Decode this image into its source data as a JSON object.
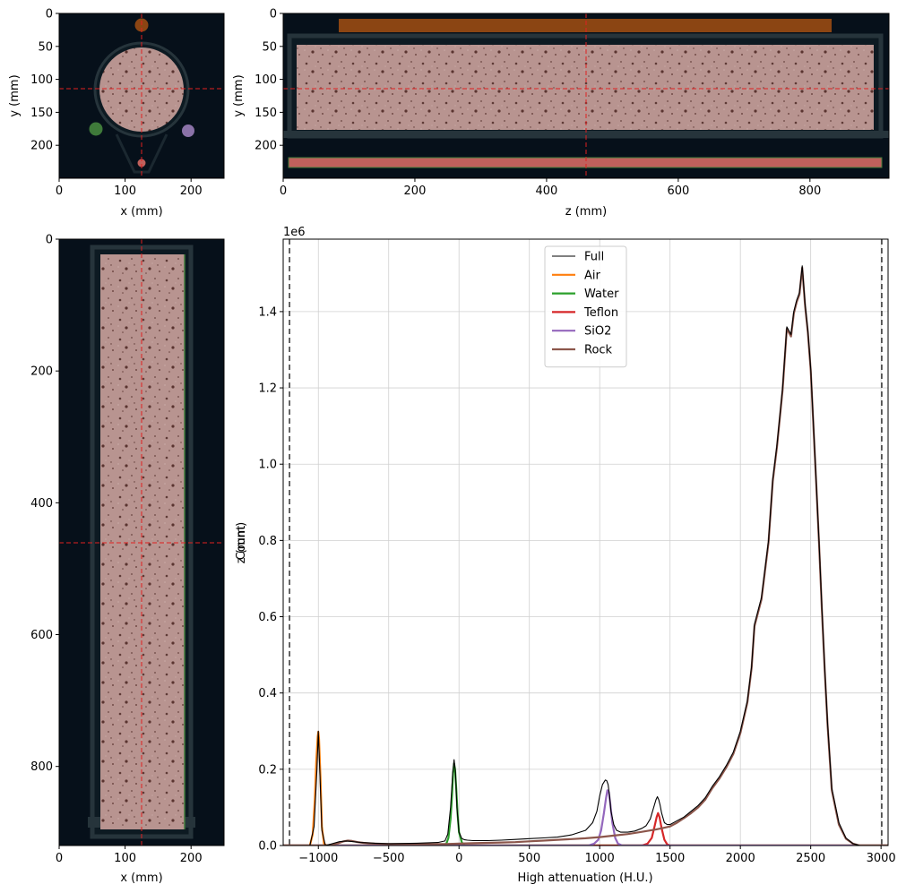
{
  "colors": {
    "full": "#000000",
    "air": "#ff7f0e",
    "water": "#2ca02c",
    "teflon": "#d62728",
    "sio2": "#9467bd",
    "rock": "#8c564b",
    "crosshair": "#e02020",
    "background": "#06101a",
    "frame": "#26343b",
    "rock_overlay": "#b89490",
    "steel": "#8b4513"
  },
  "panels": {
    "axial": {
      "xlabel": "x (mm)",
      "ylabel": "y (mm)",
      "xlim": [
        0,
        250
      ],
      "ylim": [
        250,
        0
      ],
      "xticks": [
        "0",
        "100",
        "200"
      ],
      "xtick_values": [
        0,
        100,
        200
      ],
      "yticks": [
        "0",
        "50",
        "100",
        "150",
        "200"
      ],
      "ytick_values": [
        0,
        50,
        100,
        150,
        200
      ],
      "crosshair": {
        "x": 125,
        "y": 115
      }
    },
    "coronal": {
      "xlabel": "z (mm)",
      "ylabel": "y (mm)",
      "xlim": [
        0,
        920
      ],
      "ylim": [
        250,
        0
      ],
      "xticks": [
        "0",
        "200",
        "400",
        "600",
        "800"
      ],
      "xtick_values": [
        0,
        200,
        400,
        600,
        800
      ],
      "yticks": [
        "0",
        "50",
        "100",
        "150",
        "200"
      ],
      "ytick_values": [
        0,
        50,
        100,
        150,
        200
      ],
      "crosshair": {
        "x": 460,
        "y": 115
      }
    },
    "sagittal": {
      "xlabel": "x (mm)",
      "ylabel": "z (mm)",
      "xlim": [
        0,
        250
      ],
      "ylim": [
        920,
        0
      ],
      "xticks": [
        "0",
        "100",
        "200"
      ],
      "xtick_values": [
        0,
        100,
        200
      ],
      "yticks": [
        "0",
        "200",
        "400",
        "600",
        "800"
      ],
      "ytick_values": [
        0,
        200,
        400,
        600,
        800
      ],
      "crosshair": {
        "x": 125,
        "y": 460
      }
    }
  },
  "chart_data": {
    "type": "line",
    "xlabel": "High attenuation (H.U.)",
    "ylabel": "Count",
    "offset_label": "1e6",
    "xlim": [
      -1250,
      3050
    ],
    "ylim": [
      0,
      1.59
    ],
    "xticks": [
      "−1000",
      "−500",
      "0",
      "500",
      "1000",
      "1500",
      "2000",
      "2500",
      "3000"
    ],
    "xtick_values": [
      -1000,
      -500,
      0,
      500,
      1000,
      1500,
      2000,
      2500,
      3000
    ],
    "yticks": [
      "0.0",
      "0.2",
      "0.4",
      "0.6",
      "0.8",
      "1.0",
      "1.2",
      "1.4"
    ],
    "ytick_values": [
      0,
      0.2,
      0.4,
      0.6,
      0.8,
      1.0,
      1.2,
      1.4
    ],
    "grid": true,
    "legend_position": "top-center",
    "vlines": [
      -1205,
      3005
    ],
    "series": [
      {
        "name": "Full",
        "color_key": "full",
        "width": 1.1,
        "x": [
          -1250,
          -1060,
          -1030,
          -1010,
          -1000,
          -990,
          -975,
          -950,
          -900,
          -850,
          -800,
          -750,
          -700,
          -600,
          -500,
          -300,
          -150,
          -100,
          -80,
          -60,
          -45,
          -35,
          -25,
          -15,
          0,
          20,
          40,
          60,
          100,
          150,
          200,
          300,
          400,
          500,
          600,
          700,
          800,
          900,
          950,
          980,
          1000,
          1020,
          1040,
          1050,
          1060,
          1070,
          1080,
          1100,
          1120,
          1150,
          1200,
          1250,
          1300,
          1330,
          1360,
          1380,
          1400,
          1410,
          1420,
          1430,
          1440,
          1460,
          1480,
          1500,
          1550,
          1600,
          1650,
          1700,
          1750,
          1800,
          1850,
          1900,
          1950,
          2000,
          2050,
          2080,
          2100,
          2150,
          2200,
          2230,
          2260,
          2300,
          2330,
          2360,
          2380,
          2400,
          2420,
          2440,
          2460,
          2480,
          2500,
          2520,
          2540,
          2560,
          2580,
          2600,
          2620,
          2650,
          2700,
          2750,
          2800,
          2850,
          2900,
          2950,
          3000,
          3050
        ],
        "y": [
          0,
          0,
          0.05,
          0.2,
          0.3,
          0.2,
          0.04,
          0,
          0.005,
          0.01,
          0.012,
          0.01,
          0.008,
          0.006,
          0.005,
          0.006,
          0.008,
          0.012,
          0.03,
          0.1,
          0.19,
          0.225,
          0.19,
          0.1,
          0.035,
          0.018,
          0.015,
          0.014,
          0.013,
          0.013,
          0.013,
          0.014,
          0.016,
          0.018,
          0.02,
          0.022,
          0.028,
          0.04,
          0.06,
          0.09,
          0.13,
          0.16,
          0.172,
          0.17,
          0.16,
          0.13,
          0.09,
          0.055,
          0.04,
          0.035,
          0.035,
          0.038,
          0.045,
          0.052,
          0.07,
          0.095,
          0.12,
          0.128,
          0.12,
          0.105,
          0.085,
          0.06,
          0.055,
          0.055,
          0.065,
          0.075,
          0.09,
          0.105,
          0.125,
          0.155,
          0.18,
          0.21,
          0.245,
          0.3,
          0.38,
          0.47,
          0.58,
          0.65,
          0.8,
          0.96,
          1.05,
          1.2,
          1.36,
          1.34,
          1.4,
          1.43,
          1.45,
          1.52,
          1.42,
          1.35,
          1.25,
          1.1,
          0.95,
          0.79,
          0.62,
          0.46,
          0.32,
          0.15,
          0.06,
          0.02,
          0.005,
          0,
          0,
          0,
          0,
          0
        ]
      },
      {
        "name": "Air",
        "color_key": "air",
        "width": 2.2,
        "x": [
          -1250,
          -1060,
          -1040,
          -1025,
          -1015,
          -1005,
          -1000,
          -995,
          -985,
          -975,
          -960,
          -940,
          -900,
          3050
        ],
        "y": [
          0,
          0,
          0.03,
          0.12,
          0.22,
          0.285,
          0.298,
          0.28,
          0.18,
          0.05,
          0.005,
          0,
          0,
          0
        ]
      },
      {
        "name": "Water",
        "color_key": "water",
        "width": 2.2,
        "x": [
          -1250,
          -120,
          -90,
          -75,
          -60,
          -50,
          -42,
          -35,
          -28,
          -20,
          -10,
          0,
          20,
          40,
          3050
        ],
        "y": [
          0,
          0,
          0.005,
          0.02,
          0.07,
          0.13,
          0.19,
          0.215,
          0.2,
          0.15,
          0.08,
          0.035,
          0.008,
          0,
          0
        ]
      },
      {
        "name": "Teflon",
        "color_key": "teflon",
        "width": 2.2,
        "x": [
          -1250,
          1300,
          1340,
          1370,
          1390,
          1405,
          1415,
          1425,
          1440,
          1460,
          1480,
          1500,
          3050
        ],
        "y": [
          0,
          0,
          0.005,
          0.02,
          0.05,
          0.075,
          0.085,
          0.075,
          0.045,
          0.015,
          0.003,
          0,
          0
        ]
      },
      {
        "name": "SiO2",
        "color_key": "sio2",
        "width": 2.2,
        "x": [
          -1250,
          920,
          960,
          990,
          1010,
          1030,
          1045,
          1055,
          1065,
          1075,
          1090,
          1110,
          1130,
          1160,
          3050
        ],
        "y": [
          0,
          0,
          0.005,
          0.015,
          0.04,
          0.085,
          0.125,
          0.145,
          0.14,
          0.11,
          0.06,
          0.02,
          0.005,
          0,
          0
        ]
      },
      {
        "name": "Rock",
        "color_key": "rock",
        "width": 2.2,
        "x": [
          -1250,
          -950,
          -900,
          -860,
          -820,
          -790,
          -760,
          -720,
          -680,
          -600,
          -500,
          -300,
          -100,
          0,
          100,
          200,
          300,
          400,
          500,
          600,
          700,
          800,
          900,
          1000,
          1100,
          1200,
          1300,
          1400,
          1450,
          1500,
          1550,
          1600,
          1650,
          1700,
          1750,
          1800,
          1850,
          1900,
          1950,
          2000,
          2050,
          2080,
          2100,
          2150,
          2200,
          2230,
          2260,
          2300,
          2330,
          2360,
          2380,
          2400,
          2420,
          2440,
          2460,
          2480,
          2500,
          2520,
          2540,
          2560,
          2580,
          2600,
          2620,
          2650,
          2700,
          2750,
          2800,
          2850,
          2900,
          2950,
          3000,
          3050
        ],
        "y": [
          0,
          0,
          0.002,
          0.006,
          0.011,
          0.013,
          0.012,
          0.009,
          0.007,
          0.005,
          0.004,
          0.004,
          0.004,
          0.005,
          0.006,
          0.007,
          0.008,
          0.009,
          0.011,
          0.013,
          0.015,
          0.017,
          0.019,
          0.022,
          0.026,
          0.03,
          0.036,
          0.042,
          0.046,
          0.05,
          0.06,
          0.072,
          0.085,
          0.1,
          0.12,
          0.15,
          0.175,
          0.205,
          0.24,
          0.295,
          0.375,
          0.465,
          0.575,
          0.645,
          0.795,
          0.955,
          1.045,
          1.195,
          1.355,
          1.335,
          1.395,
          1.425,
          1.445,
          1.515,
          1.415,
          1.345,
          1.245,
          1.095,
          0.945,
          0.785,
          0.615,
          0.455,
          0.315,
          0.145,
          0.055,
          0.018,
          0.005,
          0,
          0,
          0,
          0,
          0
        ]
      }
    ]
  }
}
